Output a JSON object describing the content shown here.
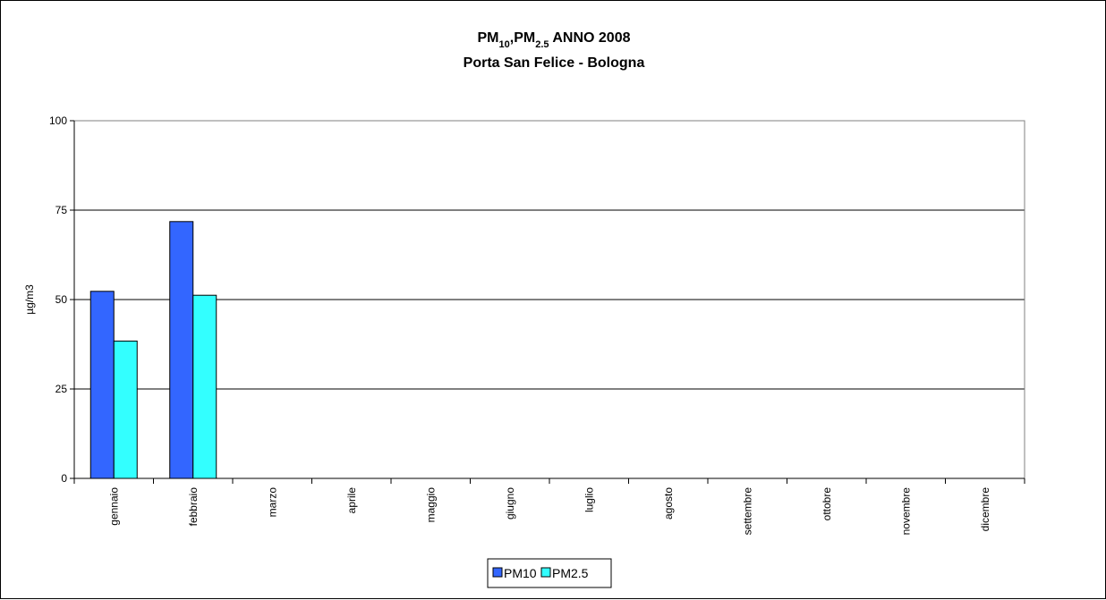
{
  "chart_data": {
    "type": "bar",
    "title": {
      "line1_parts": [
        {
          "text": "PM",
          "sub": false
        },
        {
          "text": "10",
          "sub": true
        },
        {
          "text": ",PM",
          "sub": false
        },
        {
          "text": "2.5",
          "sub": true
        },
        {
          "text": " ANNO 2008",
          "sub": false
        }
      ],
      "line2": "Porta San Felice - Bologna"
    },
    "ylabel": "µg/m3",
    "xlabel": "",
    "ylim": [
      0,
      100
    ],
    "yticks": [
      0,
      25,
      50,
      75,
      100
    ],
    "grid": true,
    "legend_position": "bottom-center",
    "categories": [
      "gennaio",
      "febbraio",
      "marzo",
      "aprile",
      "maggio",
      "giugno",
      "luglio",
      "agosto",
      "settembre",
      "ottobre",
      "novembre",
      "dicembre"
    ],
    "series": [
      {
        "name": "PM10",
        "color": "#3366ff",
        "values": [
          52.3,
          71.8,
          null,
          null,
          null,
          null,
          null,
          null,
          null,
          null,
          null,
          null
        ]
      },
      {
        "name": "PM2.5",
        "color": "#33ffff",
        "values": [
          38.4,
          51.2,
          null,
          null,
          null,
          null,
          null,
          null,
          null,
          null,
          null,
          null
        ]
      }
    ]
  }
}
